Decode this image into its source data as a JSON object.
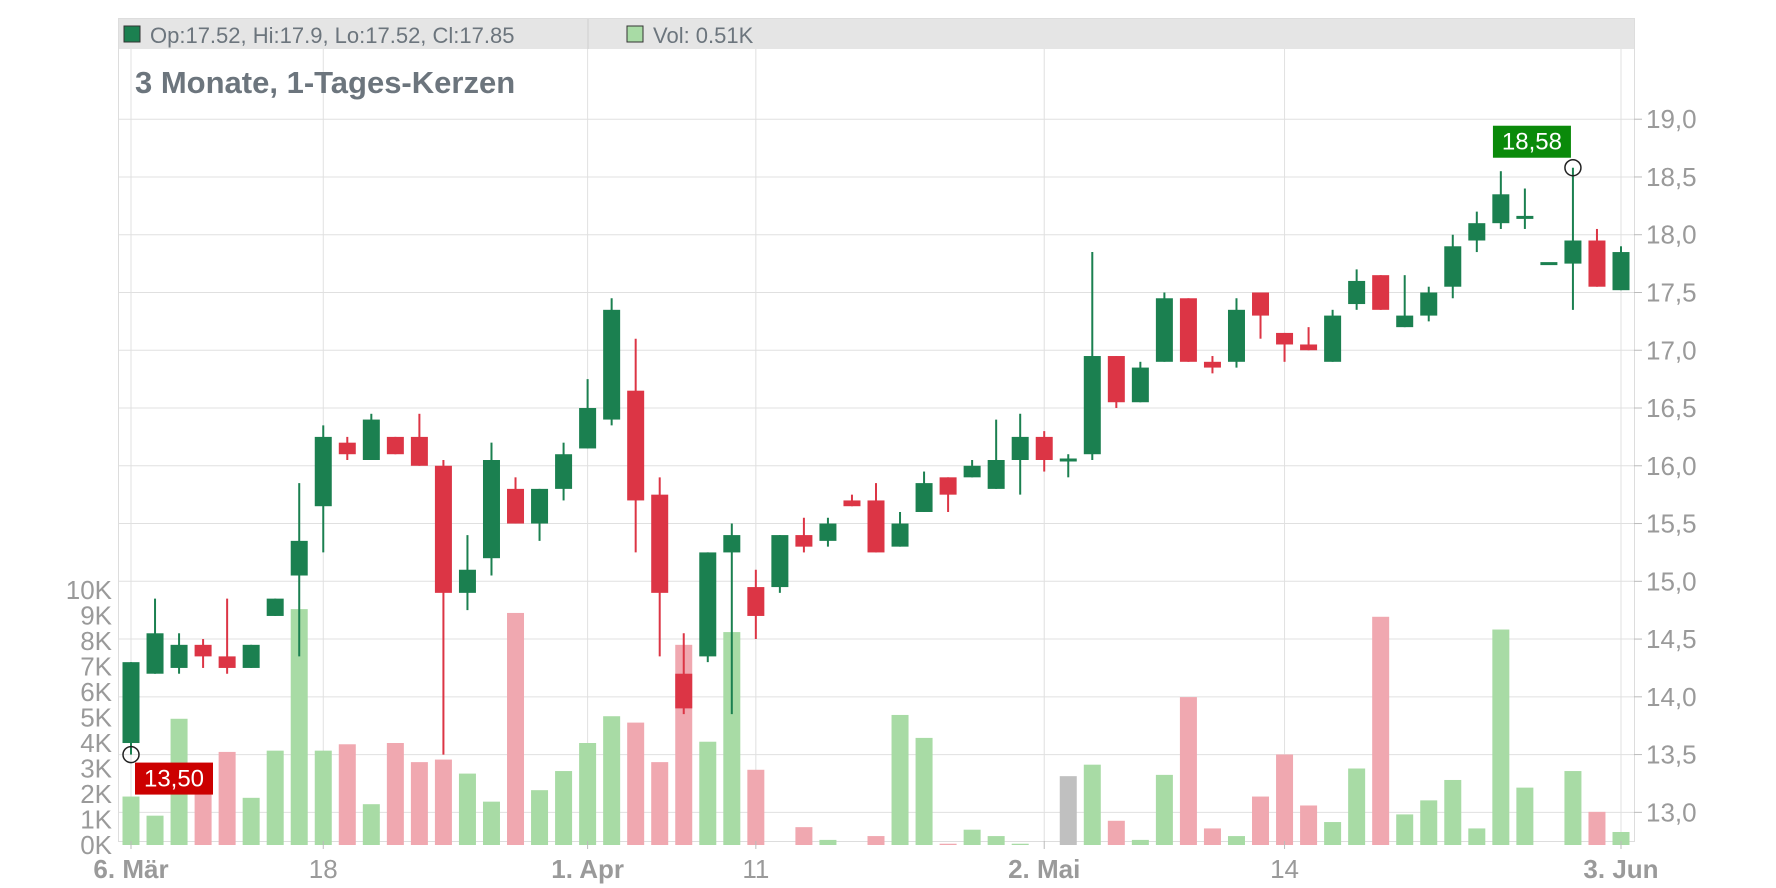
{
  "header": {
    "ohlc_label": "Op:17.52, Hi:17.9, Lo:17.52, Cl:17.85",
    "vol_label": "Vol: 0.51K"
  },
  "title": "3 Monate, 1-Tages-Kerzen",
  "colors": {
    "up": "#1b8050",
    "down": "#dc3545",
    "vol_up": "#a8dba5",
    "vol_down": "#f0a8b0",
    "vol_neutral": "#c0c0c0",
    "grid": "#e0e0e0",
    "axis_text": "#9a9a9a",
    "title_text": "#6c757d",
    "header_bg": "#e5e5e5",
    "max_badge": "#0a8a0a",
    "min_badge": "#cc0000"
  },
  "chart_data": {
    "type": "candlestick",
    "title": "3 Monate, 1-Tages-Kerzen",
    "x_tick_labels": [
      "6. Mär",
      "18",
      "1. Apr",
      "11",
      "2. Mai",
      "14",
      "3. Jun"
    ],
    "y_price_ticks": [
      "19,0",
      "18,5",
      "18,0",
      "17,5",
      "17,0",
      "16,5",
      "16,0",
      "15,5",
      "15,0",
      "14,5",
      "14,0",
      "13,5",
      "13,0"
    ],
    "y_volume_ticks": [
      "10K",
      "9K",
      "8K",
      "7K",
      "6K",
      "5K",
      "4K",
      "3K",
      "2K",
      "1K",
      "0K"
    ],
    "price_range": [
      12.7,
      19.4
    ],
    "volume_range": [
      0,
      10000
    ],
    "grid": true,
    "annotations": {
      "max_label": "18,58",
      "min_label": "13,50"
    },
    "candles": [
      {
        "date": "6. Mär",
        "o": 13.6,
        "h": 14.3,
        "l": 13.5,
        "c": 14.3,
        "v": 1900
      },
      {
        "date": "",
        "o": 14.2,
        "h": 14.85,
        "l": 14.2,
        "c": 14.55,
        "v": 1150
      },
      {
        "date": "",
        "o": 14.25,
        "h": 14.55,
        "l": 14.2,
        "c": 14.45,
        "v": 4950
      },
      {
        "date": "",
        "o": 14.45,
        "h": 14.5,
        "l": 14.25,
        "c": 14.35,
        "v": 2950
      },
      {
        "date": "",
        "o": 14.35,
        "h": 14.85,
        "l": 14.2,
        "c": 14.25,
        "v": 3650
      },
      {
        "date": "",
        "o": 14.25,
        "h": 14.45,
        "l": 14.25,
        "c": 14.45,
        "v": 1850
      },
      {
        "date": "",
        "o": 14.7,
        "h": 14.85,
        "l": 14.7,
        "c": 14.85,
        "v": 3700
      },
      {
        "date": "",
        "o": 15.05,
        "h": 15.85,
        "l": 14.35,
        "c": 15.35,
        "v": 9250
      },
      {
        "date": "18",
        "o": 15.65,
        "h": 16.35,
        "l": 15.25,
        "c": 16.25,
        "v": 3700
      },
      {
        "date": "",
        "o": 16.2,
        "h": 16.25,
        "l": 16.05,
        "c": 16.1,
        "v": 3950
      },
      {
        "date": "",
        "o": 16.05,
        "h": 16.45,
        "l": 16.05,
        "c": 16.4,
        "v": 1600
      },
      {
        "date": "",
        "o": 16.25,
        "h": 16.25,
        "l": 16.1,
        "c": 16.1,
        "v": 4000
      },
      {
        "date": "",
        "o": 16.25,
        "h": 16.45,
        "l": 16.0,
        "c": 16.0,
        "v": 3250
      },
      {
        "date": "",
        "o": 16.0,
        "h": 16.05,
        "l": 13.5,
        "c": 14.9,
        "v": 3350
      },
      {
        "date": "",
        "o": 14.9,
        "h": 15.4,
        "l": 14.75,
        "c": 15.1,
        "v": 2800
      },
      {
        "date": "",
        "o": 15.2,
        "h": 16.2,
        "l": 15.05,
        "c": 16.05,
        "v": 1700
      },
      {
        "date": "",
        "o": 15.8,
        "h": 15.9,
        "l": 15.5,
        "c": 15.5,
        "v": 9100
      },
      {
        "date": "",
        "o": 15.5,
        "h": 15.8,
        "l": 15.35,
        "c": 15.8,
        "v": 2150
      },
      {
        "date": "",
        "o": 15.8,
        "h": 16.2,
        "l": 15.7,
        "c": 16.1,
        "v": 2900
      },
      {
        "date": "1. Apr",
        "o": 16.15,
        "h": 16.75,
        "l": 16.15,
        "c": 16.5,
        "v": 4000
      },
      {
        "date": "",
        "o": 16.4,
        "h": 17.45,
        "l": 16.35,
        "c": 17.35,
        "v": 5050
      },
      {
        "date": "",
        "o": 16.65,
        "h": 17.1,
        "l": 15.25,
        "c": 15.7,
        "v": 4800
      },
      {
        "date": "",
        "o": 15.75,
        "h": 15.9,
        "l": 14.35,
        "c": 14.9,
        "v": 3250
      },
      {
        "date": "",
        "o": 14.2,
        "h": 14.55,
        "l": 13.85,
        "c": 13.9,
        "v": 7850
      },
      {
        "date": "",
        "o": 14.35,
        "h": 15.25,
        "l": 14.3,
        "c": 15.25,
        "v": 4050
      },
      {
        "date": "",
        "o": 15.25,
        "h": 15.5,
        "l": 13.85,
        "c": 15.4,
        "v": 8350
      },
      {
        "date": "11",
        "o": 14.95,
        "h": 15.1,
        "l": 14.5,
        "c": 14.7,
        "v": 2950
      },
      {
        "date": "",
        "o": 14.95,
        "h": 15.4,
        "l": 14.9,
        "c": 15.4,
        "v": 0
      },
      {
        "date": "",
        "o": 15.4,
        "h": 15.55,
        "l": 15.25,
        "c": 15.3,
        "v": 700
      },
      {
        "date": "",
        "o": 15.35,
        "h": 15.55,
        "l": 15.3,
        "c": 15.5,
        "v": 200
      },
      {
        "date": "",
        "o": 15.7,
        "h": 15.75,
        "l": 15.65,
        "c": 15.65,
        "v": 0
      },
      {
        "date": "",
        "o": 15.7,
        "h": 15.85,
        "l": 15.25,
        "c": 15.25,
        "v": 350
      },
      {
        "date": "",
        "o": 15.3,
        "h": 15.6,
        "l": 15.3,
        "c": 15.5,
        "v": 5100
      },
      {
        "date": "",
        "o": 15.6,
        "h": 15.95,
        "l": 15.6,
        "c": 15.85,
        "v": 4200
      },
      {
        "date": "",
        "o": 15.9,
        "h": 15.9,
        "l": 15.6,
        "c": 15.75,
        "v": 50
      },
      {
        "date": "",
        "o": 15.9,
        "h": 16.05,
        "l": 15.9,
        "c": 16.0,
        "v": 600
      },
      {
        "date": "",
        "o": 15.8,
        "h": 16.4,
        "l": 15.8,
        "c": 16.05,
        "v": 350
      },
      {
        "date": "",
        "o": 16.05,
        "h": 16.45,
        "l": 15.75,
        "c": 16.25,
        "v": 50
      },
      {
        "date": "2. Mai",
        "o": 16.25,
        "h": 16.3,
        "l": 15.95,
        "c": 16.05,
        "v": 0
      },
      {
        "date": "",
        "o": 16.05,
        "h": 16.1,
        "l": 15.9,
        "c": 16.05,
        "v": 2700
      },
      {
        "date": "",
        "o": 16.1,
        "h": 17.85,
        "l": 16.05,
        "c": 16.95,
        "v": 3150
      },
      {
        "date": "",
        "o": 16.95,
        "h": 16.95,
        "l": 16.5,
        "c": 16.55,
        "v": 950
      },
      {
        "date": "",
        "o": 16.55,
        "h": 16.9,
        "l": 16.55,
        "c": 16.85,
        "v": 200
      },
      {
        "date": "",
        "o": 16.9,
        "h": 17.5,
        "l": 16.9,
        "c": 17.45,
        "v": 2750
      },
      {
        "date": "",
        "o": 17.45,
        "h": 17.45,
        "l": 16.9,
        "c": 16.9,
        "v": 5800
      },
      {
        "date": "",
        "o": 16.9,
        "h": 16.95,
        "l": 16.8,
        "c": 16.85,
        "v": 650
      },
      {
        "date": "",
        "o": 16.9,
        "h": 17.45,
        "l": 16.85,
        "c": 17.35,
        "v": 350
      },
      {
        "date": "",
        "o": 17.5,
        "h": 17.5,
        "l": 17.1,
        "c": 17.3,
        "v": 1900
      },
      {
        "date": "14",
        "o": 17.15,
        "h": 17.15,
        "l": 16.9,
        "c": 17.05,
        "v": 3550
      },
      {
        "date": "",
        "o": 17.05,
        "h": 17.2,
        "l": 17.0,
        "c": 17.0,
        "v": 1550
      },
      {
        "date": "",
        "o": 16.9,
        "h": 17.35,
        "l": 16.9,
        "c": 17.3,
        "v": 900
      },
      {
        "date": "",
        "o": 17.4,
        "h": 17.7,
        "l": 17.35,
        "c": 17.6,
        "v": 3000
      },
      {
        "date": "",
        "o": 17.65,
        "h": 17.65,
        "l": 17.35,
        "c": 17.35,
        "v": 8950
      },
      {
        "date": "",
        "o": 17.2,
        "h": 17.65,
        "l": 17.2,
        "c": 17.3,
        "v": 1200
      },
      {
        "date": "",
        "o": 17.3,
        "h": 17.55,
        "l": 17.25,
        "c": 17.5,
        "v": 1750
      },
      {
        "date": "",
        "o": 17.55,
        "h": 18.0,
        "l": 17.45,
        "c": 17.9,
        "v": 2550
      },
      {
        "date": "",
        "o": 17.95,
        "h": 18.2,
        "l": 17.85,
        "c": 18.1,
        "v": 650
      },
      {
        "date": "",
        "o": 18.1,
        "h": 18.55,
        "l": 18.05,
        "c": 18.35,
        "v": 8450
      },
      {
        "date": "",
        "o": 18.15,
        "h": 18.4,
        "l": 18.05,
        "c": 18.15,
        "v": 2250
      },
      {
        "date": "",
        "o": 17.75,
        "h": 17.75,
        "l": 17.75,
        "c": 17.75,
        "v": 0
      },
      {
        "date": "",
        "o": 17.75,
        "h": 18.58,
        "l": 17.35,
        "c": 17.95,
        "v": 2900
      },
      {
        "date": "",
        "o": 17.95,
        "h": 18.05,
        "l": 17.55,
        "c": 17.55,
        "v": 1300
      },
      {
        "date": "3. Jun",
        "o": 17.52,
        "h": 17.9,
        "l": 17.52,
        "c": 17.85,
        "v": 510
      }
    ]
  }
}
